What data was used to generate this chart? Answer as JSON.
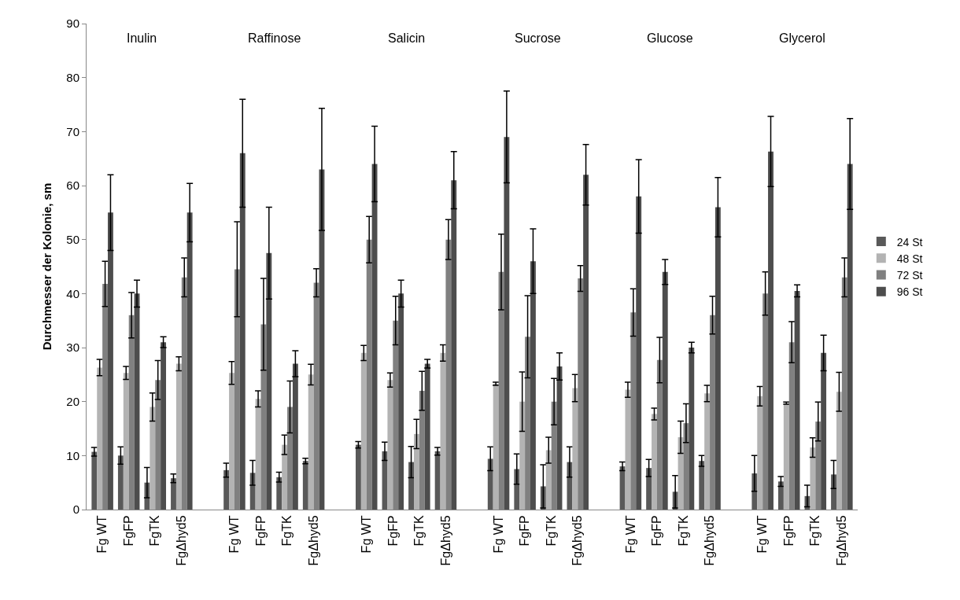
{
  "chart_data": {
    "type": "bar",
    "ylabel": "Durchmesser der Kolonie, sm",
    "annotations": [
      "Inulin",
      "Raffinose",
      "Salicin",
      "Sucrose",
      "Glucose",
      "Glycerol"
    ],
    "categories": [
      "Fg WT",
      "FgFP",
      "FgTK",
      "FgΔhyd5",
      null,
      "Fg WT",
      "FgFP",
      "FgTK",
      "FgΔhyd5",
      null,
      "Fg WT",
      "FgFP",
      "FgTK",
      "FgΔhyd5",
      null,
      "Fg WT",
      "FgFP",
      "FgTK",
      "FgΔhyd5",
      null,
      "Fg WT",
      "FgFP",
      "FgTK",
      "FgΔhyd5",
      null,
      "Fg WT",
      "FgFP",
      "FgTK",
      "FgΔhyd5"
    ],
    "series": [
      {
        "name": "24 St",
        "color": "#595959",
        "values": [
          10.7,
          10,
          5,
          5.8,
          null,
          7.3,
          6.8,
          6,
          9,
          null,
          12,
          10.8,
          8.8,
          10.8,
          null,
          9.4,
          7.5,
          4.3,
          8.8,
          null,
          8,
          7.7,
          3.3,
          9,
          null,
          6.7,
          5.2,
          2.5,
          6.5
        ],
        "errors": [
          0.8,
          1.6,
          2.8,
          0.8,
          null,
          1.3,
          2.3,
          0.9,
          0.5,
          null,
          0.6,
          1.7,
          2.9,
          0.7,
          null,
          2.2,
          2.8,
          4,
          2.8,
          null,
          0.8,
          1.6,
          3,
          1,
          null,
          3.3,
          0.9,
          2,
          2.6
        ]
      },
      {
        "name": "48 St",
        "color": "#b3b3b3",
        "values": [
          26.3,
          25.3,
          19,
          27,
          null,
          25.3,
          20.5,
          12,
          25,
          null,
          29,
          24,
          14,
          29,
          null,
          23.3,
          20,
          11,
          22.5,
          null,
          22.2,
          17.7,
          13.4,
          21.5,
          null,
          21,
          19.7,
          11.5,
          21.8
        ],
        "errors": [
          1.5,
          1.2,
          2.6,
          1.3,
          null,
          2.1,
          1.5,
          1.8,
          1.9,
          null,
          1.4,
          1.3,
          2.7,
          1.5,
          null,
          0.3,
          5.5,
          2.4,
          2.5,
          null,
          1.4,
          1.1,
          3,
          1.5,
          null,
          1.8,
          0.2,
          1.8,
          3.6
        ]
      },
      {
        "name": "72 St",
        "color": "#808080",
        "values": [
          41.8,
          36,
          24,
          43,
          null,
          44.5,
          34.3,
          19,
          42,
          null,
          50,
          35,
          22,
          50,
          null,
          44,
          32,
          20,
          42.8,
          null,
          36.5,
          27.7,
          16,
          36,
          null,
          40,
          31,
          16.3,
          43
        ],
        "errors": [
          4.2,
          4.2,
          3.6,
          3.6,
          null,
          8.8,
          8.5,
          4.8,
          2.6,
          null,
          4.3,
          4.5,
          3.6,
          3.7,
          null,
          7,
          7.6,
          4.3,
          2.4,
          null,
          4.4,
          4.2,
          3.6,
          3.5,
          null,
          4,
          3.8,
          3.6,
          3.6
        ]
      },
      {
        "name": "96 St",
        "color": "#4d4d4d",
        "values": [
          55,
          40,
          31,
          55,
          null,
          66,
          47.5,
          27,
          63,
          null,
          64,
          40,
          27,
          61,
          null,
          69,
          46,
          26.5,
          62,
          null,
          58,
          44,
          30,
          56,
          null,
          66.3,
          40.5,
          29,
          64
        ],
        "errors": [
          7,
          2.5,
          1,
          5.4,
          null,
          10,
          8.5,
          2.4,
          11.3,
          null,
          7,
          2.5,
          0.8,
          5.3,
          null,
          8.5,
          6,
          2.5,
          5.6,
          null,
          6.8,
          2.3,
          1,
          5.5,
          null,
          6.5,
          1.1,
          3.3,
          8.4
        ]
      }
    ],
    "ylim": [
      0,
      90
    ],
    "yticks": [
      0,
      10,
      20,
      30,
      40,
      50,
      60,
      70,
      80,
      90
    ],
    "legend": "right"
  }
}
